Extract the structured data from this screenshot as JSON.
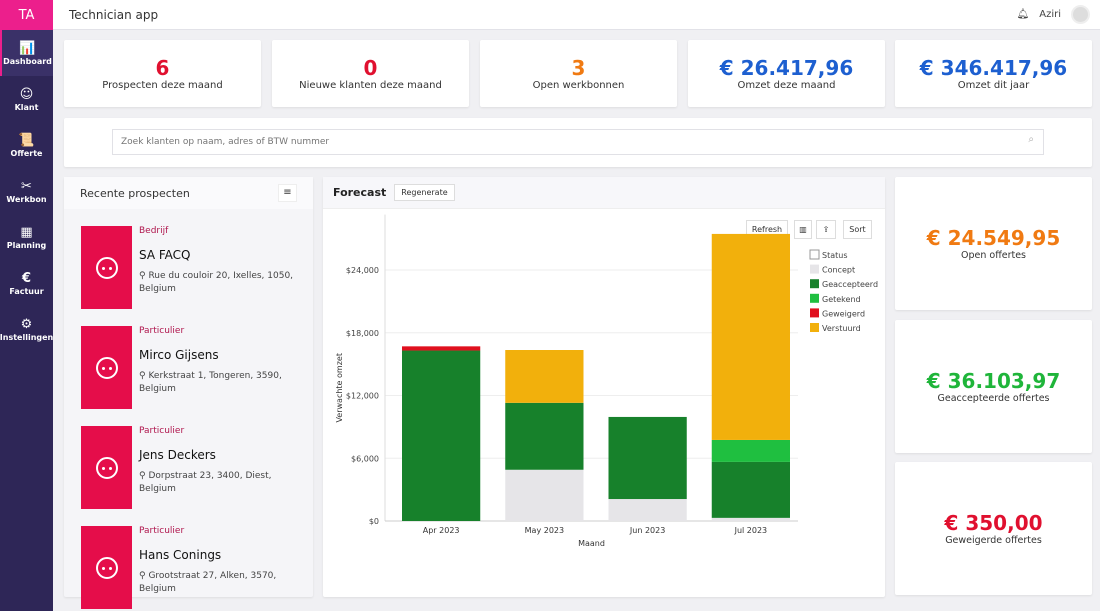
{
  "app": {
    "logo": "TA",
    "title": "Technician app",
    "user": "Aziri"
  },
  "sidebar": [
    {
      "label": "Dashboard",
      "icon": "chart-icon",
      "glyph": "📊"
    },
    {
      "label": "Klant",
      "icon": "face-icon",
      "glyph": "☺"
    },
    {
      "label": "Offerte",
      "icon": "scroll-icon",
      "glyph": "📜"
    },
    {
      "label": "Werkbon",
      "icon": "tools-icon",
      "glyph": "✂"
    },
    {
      "label": "Planning",
      "icon": "calendar-icon",
      "glyph": "▦"
    },
    {
      "label": "Factuur",
      "icon": "euro-icon",
      "glyph": "€"
    },
    {
      "label": "Instellingen",
      "icon": "gear-icon",
      "glyph": "⚙"
    }
  ],
  "stats": [
    {
      "value": "6",
      "label": "Prospecten deze maand",
      "color": "#e0102f"
    },
    {
      "value": "0",
      "label": "Nieuwe klanten deze maand",
      "color": "#e0102f"
    },
    {
      "value": "3",
      "label": "Open werkbonnen",
      "color": "#f07a12"
    },
    {
      "value": "€ 26.417,96",
      "label": "Omzet deze maand",
      "color": "#1d5fd0"
    },
    {
      "value": "€ 346.417,96",
      "label": "Omzet dit jaar",
      "color": "#1d5fd0"
    }
  ],
  "search": {
    "placeholder": "Zoek klanten op naam, adres of BTW nummer"
  },
  "prospects": {
    "title": "Recente prospecten",
    "items": [
      {
        "type": "Bedrijf",
        "name": "SA FACQ",
        "address": "Rue du couloir 20, Ixelles, 1050, Belgium"
      },
      {
        "type": "Particulier",
        "name": "Mirco Gijsens",
        "address": "Kerkstraat 1, Tongeren, 3590, Belgium"
      },
      {
        "type": "Particulier",
        "name": "Jens Deckers",
        "address": "Dorpstraat 23, 3400, Diest, Belgium"
      },
      {
        "type": "Particulier",
        "name": "Hans Conings",
        "address": "Grootstraat 27, Alken, 3570, Belgium"
      }
    ]
  },
  "forecast": {
    "title": "Forecast",
    "regenerate": "Regenerate",
    "refresh": "Refresh",
    "sort": "Sort"
  },
  "right_cards": [
    {
      "value": "€ 24.549,95",
      "label": "Open offertes",
      "color": "#f07a12"
    },
    {
      "value": "€ 36.103,97",
      "label": "Geaccepteerde offertes",
      "color": "#1fb53a"
    },
    {
      "value": "€ 350,00",
      "label": "Geweigerde offertes",
      "color": "#e0102f"
    }
  ],
  "chart_data": {
    "type": "bar",
    "stacked": true,
    "categories": [
      "Apr 2023",
      "May 2023",
      "Jun 2023",
      "Jul 2023"
    ],
    "xlabel": "Maand",
    "ylabel": "Verwachte omzet",
    "ylim": [
      0,
      29300
    ],
    "yticks": [
      "$0",
      "$6,000",
      "$12,000",
      "$18,000",
      "$24,000"
    ],
    "ytick_values": [
      0,
      6000,
      12000,
      18000,
      24000
    ],
    "legend_title": "Status",
    "legend_position": "right",
    "grid": true,
    "series": [
      {
        "name": "Concept",
        "color": "#e6e5e8",
        "values": [
          0,
          4900,
          2100,
          300
        ]
      },
      {
        "name": "Geaccepteerd",
        "color": "#17812b",
        "values": [
          16300,
          6400,
          7850,
          5350
        ]
      },
      {
        "name": "Getekend",
        "color": "#1fbf40",
        "values": [
          0,
          0,
          0,
          2100
        ]
      },
      {
        "name": "Geweigerd",
        "color": "#e0101e",
        "values": [
          400,
          0,
          0,
          0
        ]
      },
      {
        "name": "Verstuurd",
        "color": "#f2b00c",
        "values": [
          0,
          5050,
          0,
          19700
        ]
      }
    ]
  }
}
